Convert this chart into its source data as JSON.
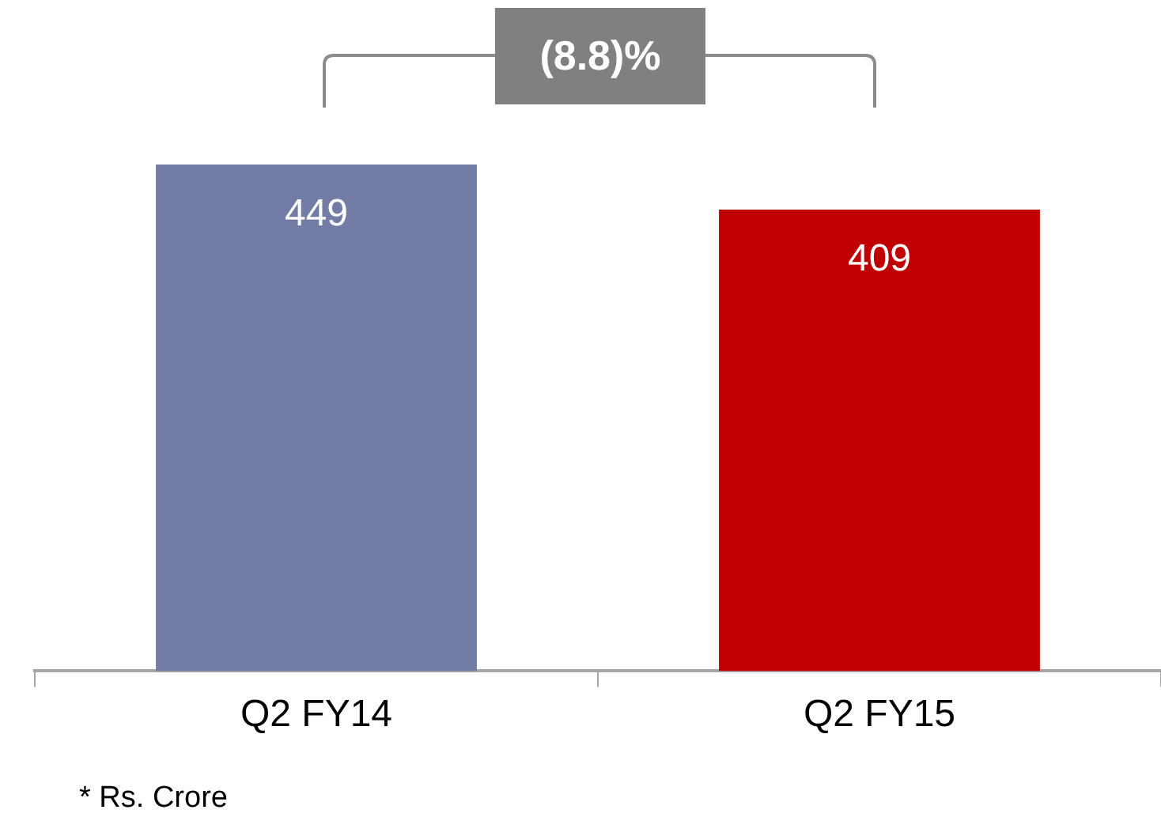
{
  "chart_data": {
    "type": "bar",
    "categories": [
      "Q2 FY14",
      "Q2 FY15"
    ],
    "values": [
      449,
      409
    ],
    "colors": [
      "#737ca4",
      "#c00000"
    ],
    "data_labels": true,
    "grid": false,
    "legend": false,
    "annotations": [
      "(8.8)%",
      "* Rs. Crore"
    ]
  }
}
